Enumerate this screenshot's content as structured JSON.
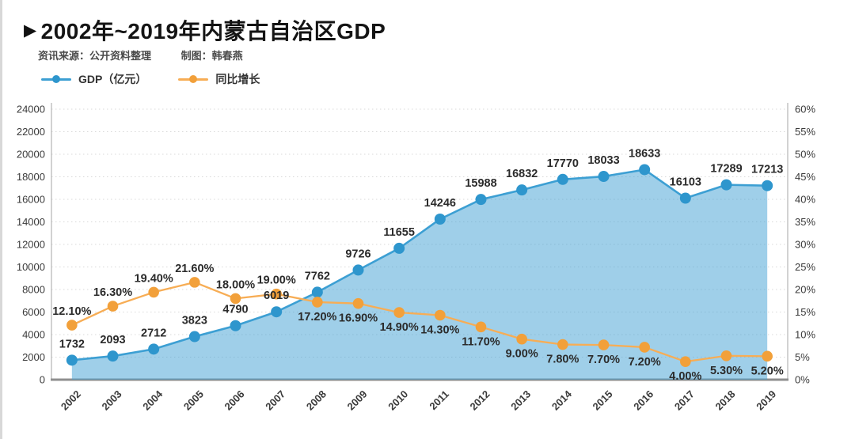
{
  "header": {
    "marker": "▶",
    "title": "2002年~2019年内蒙古自治区GDP",
    "source_label": "资讯来源：公开资料整理",
    "credit_label": "制图：韩春燕"
  },
  "legend": {
    "items": [
      {
        "label": "GDP（亿元）",
        "line_color": "#3c9fd3",
        "marker_color": "#2e96cd"
      },
      {
        "label": "同比增长",
        "line_color": "#f7ad55",
        "marker_color": "#f2a03a"
      }
    ]
  },
  "chart_data": {
    "type": "line",
    "title": "2002年~2019年内蒙古自治区GDP",
    "categories": [
      "2002",
      "2003",
      "2004",
      "2005",
      "2006",
      "2007",
      "2008",
      "2009",
      "2010",
      "2011",
      "2012",
      "2013",
      "2014",
      "2015",
      "2016",
      "2017",
      "2018",
      "2019"
    ],
    "series": [
      {
        "name": "GDP（亿元）",
        "type": "line",
        "area": true,
        "axis": "left",
        "values": [
          1732,
          2093,
          2712,
          3823,
          4790,
          6019,
          7762,
          9726,
          11655,
          14246,
          15988,
          16832,
          17770,
          18033,
          18633,
          16103,
          17289,
          17213
        ],
        "labels": [
          "1732",
          "2093",
          "2712",
          "3823",
          "4790",
          "6019",
          "7762",
          "9726",
          "11655",
          "14246",
          "15988",
          "16832",
          "17770",
          "18033",
          "18633",
          "16103",
          "17289",
          "17213"
        ]
      },
      {
        "name": "同比增长",
        "type": "line",
        "area": false,
        "axis": "right",
        "values": [
          12.1,
          16.3,
          19.4,
          21.6,
          18.0,
          19.0,
          17.2,
          16.9,
          14.9,
          14.3,
          11.7,
          9.0,
          7.8,
          7.7,
          7.2,
          4.0,
          5.3,
          5.2
        ],
        "labels": [
          "12.10%",
          "16.30%",
          "19.40%",
          "21.60%",
          "18.00%",
          "19.00%",
          "17.20%",
          "16.90%",
          "14.90%",
          "14.30%",
          "11.70%",
          "9.00%",
          "7.80%",
          "7.70%",
          "7.20%",
          "4.00%",
          "5.30%",
          "5.20%"
        ],
        "label_positions": [
          "above",
          "above",
          "above",
          "above",
          "above",
          "above",
          "below",
          "below",
          "below",
          "below",
          "below",
          "below",
          "below",
          "below",
          "below",
          "below",
          "below",
          "below"
        ]
      }
    ],
    "left_axis": {
      "min": 0,
      "max": 24000,
      "step": 2000,
      "ticks": [
        "0",
        "2000",
        "4000",
        "6000",
        "8000",
        "10000",
        "12000",
        "14000",
        "16000",
        "18000",
        "20000",
        "22000",
        "24000"
      ]
    },
    "right_axis": {
      "min": 0,
      "max": 60,
      "step": 5,
      "ticks": [
        "0%",
        "5%",
        "10%",
        "15%",
        "20%",
        "25%",
        "30%",
        "35%",
        "40%",
        "45%",
        "50%",
        "55%",
        "60%"
      ]
    },
    "grid": {
      "horizontal": true,
      "style": "dotted"
    },
    "legend_position": "top-left",
    "x_label_rotation": -45,
    "style": {
      "gdp_line_color": "#3c9fd3",
      "gdp_marker_color": "#2e96cd",
      "gdp_area_color": "#3f9fd4",
      "gdp_area_opacity": 0.5,
      "growth_line_color": "#f7ad55",
      "growth_marker_color": "#f2a03a",
      "grid_color": "#d9d9d9",
      "axis_color": "#b3b3b3",
      "axis_bottom_color": "#8f8f8f",
      "label_color": "#2b2b2b",
      "tick_color": "#3a3a3a"
    }
  }
}
